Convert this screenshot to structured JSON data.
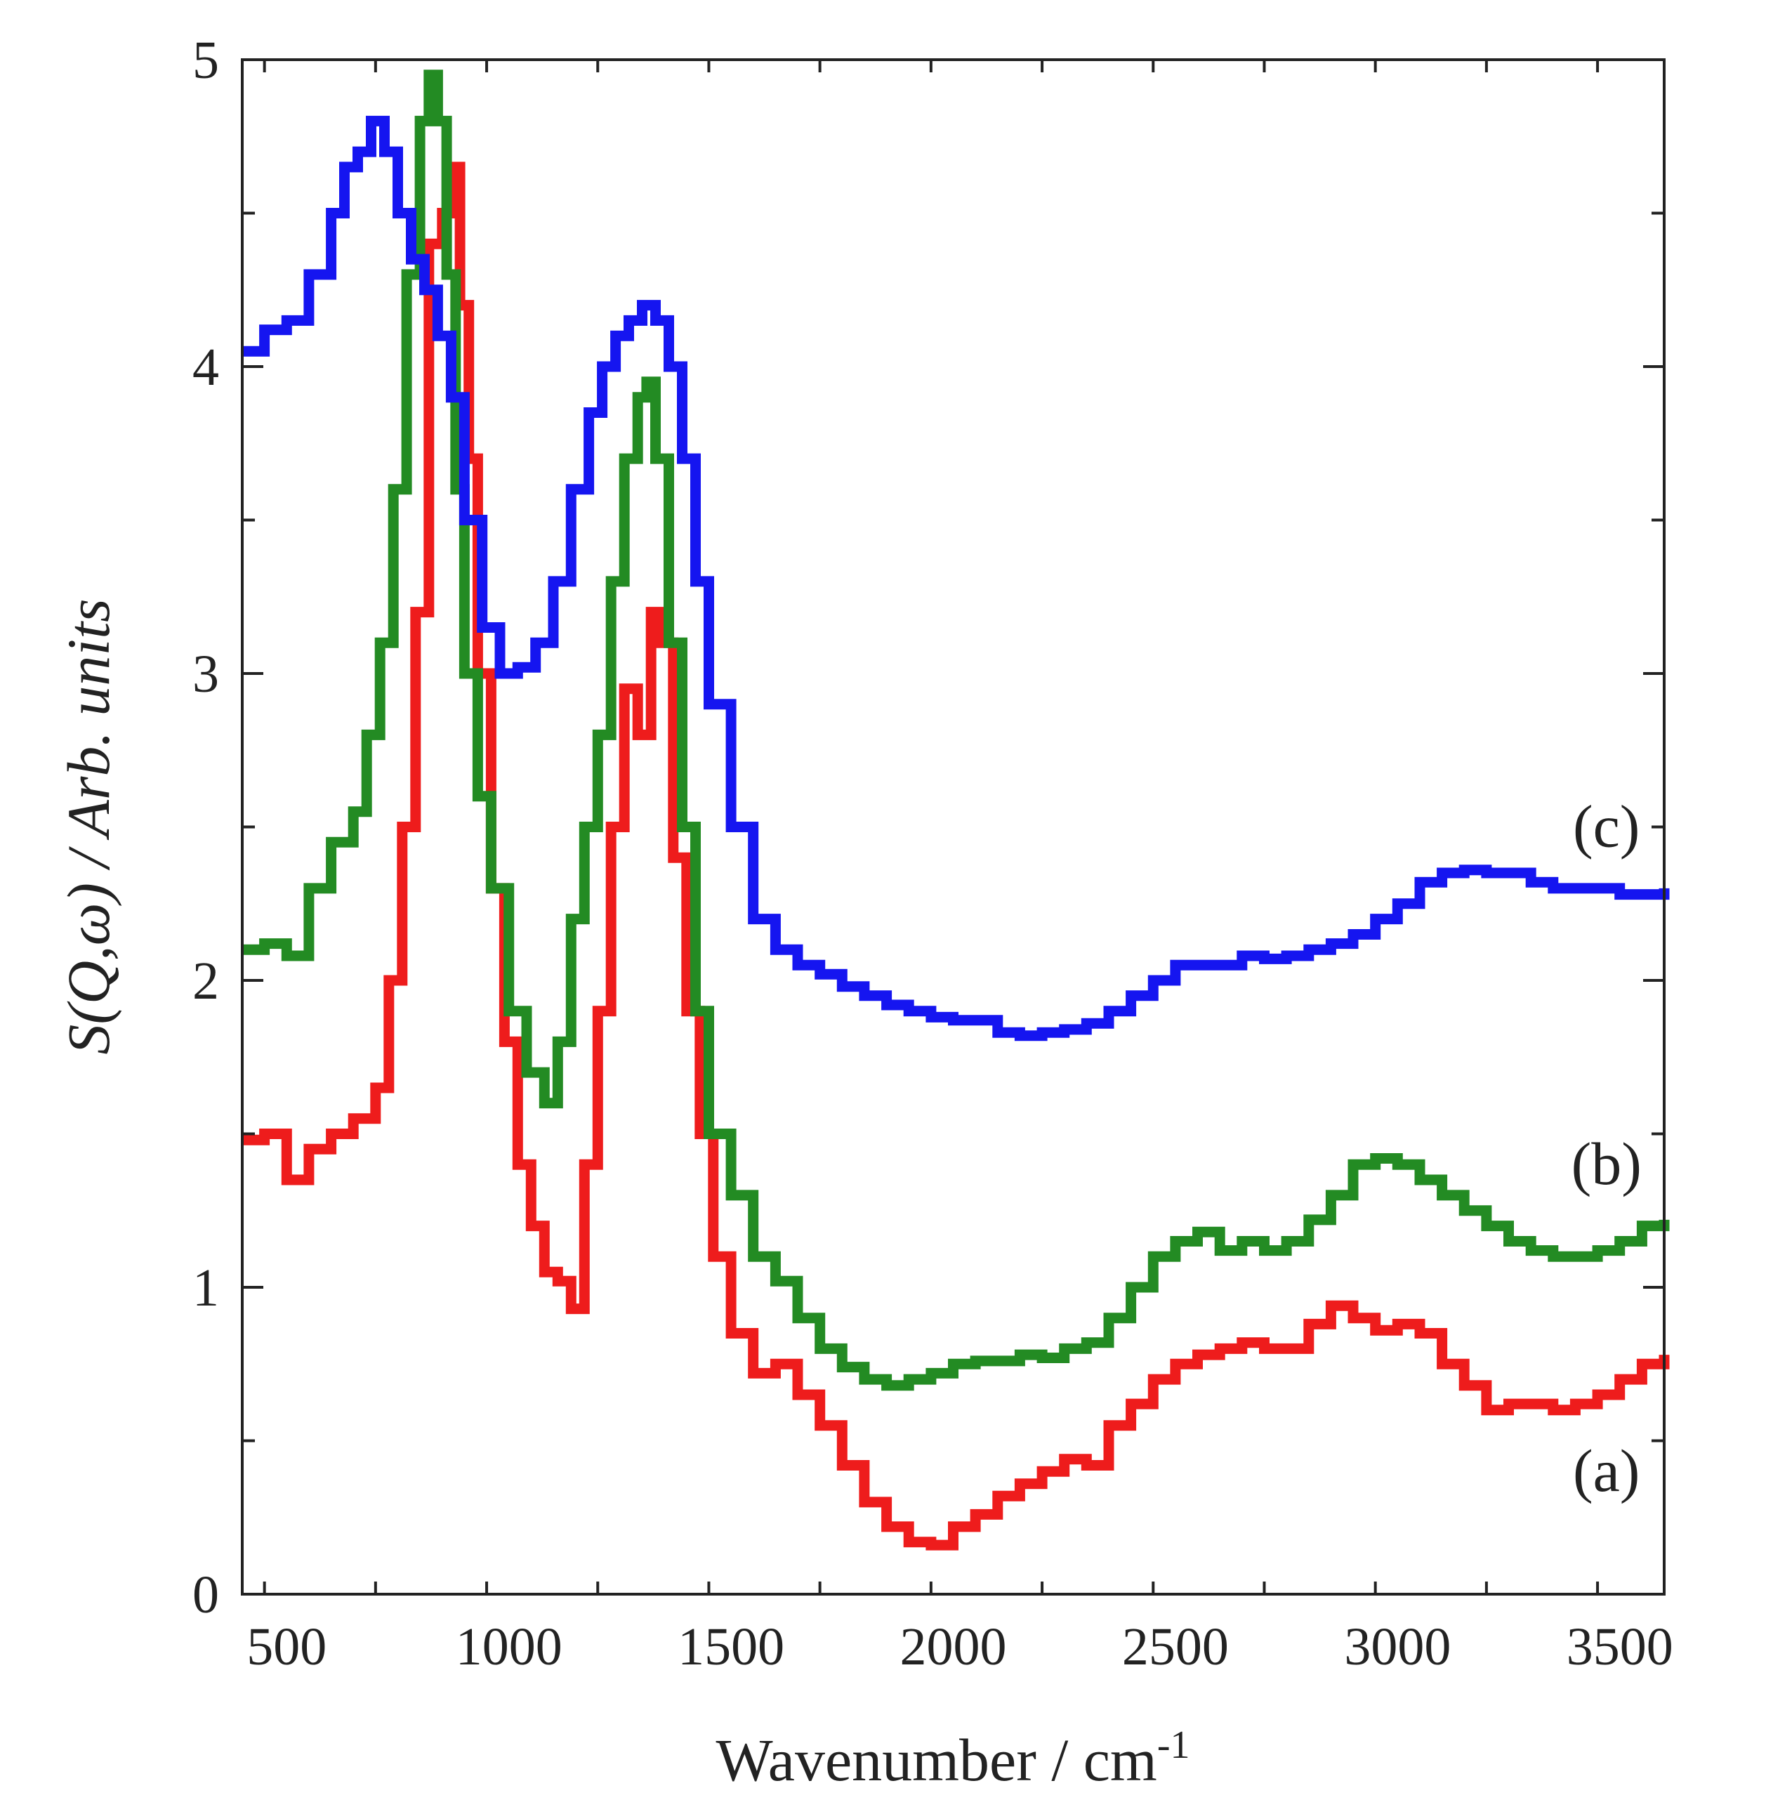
{
  "chart_data": {
    "type": "line",
    "title": "",
    "xlabel": "Wavenumber / cm",
    "xlabel_superscript": "-1",
    "ylabel": "S(Q,ω) / Arb. units",
    "xlim": [
      400,
      3600
    ],
    "ylim": [
      0,
      5
    ],
    "x_major_ticks": [
      500,
      1000,
      1500,
      2000,
      2500,
      3000,
      3500
    ],
    "x_tick_labels": [
      "500",
      "1000",
      "1500",
      "2000",
      "2500",
      "3000",
      "3500"
    ],
    "y_major_ticks": [
      0,
      1,
      2,
      3,
      4,
      5
    ],
    "y_tick_labels": [
      "0",
      "1",
      "2",
      "3",
      "4",
      "5"
    ],
    "grid": false,
    "legend": "inline labels at right",
    "series": [
      {
        "name": "(a)",
        "color": "#ee1c1c",
        "x": [
          400,
          450,
          500,
          550,
          600,
          650,
          700,
          730,
          760,
          790,
          820,
          850,
          870,
          890,
          910,
          930,
          960,
          990,
          1020,
          1050,
          1080,
          1110,
          1140,
          1170,
          1200,
          1230,
          1260,
          1290,
          1320,
          1340,
          1370,
          1400,
          1430,
          1460,
          1500,
          1550,
          1600,
          1650,
          1700,
          1750,
          1800,
          1850,
          1900,
          1950,
          2000,
          2050,
          2100,
          2150,
          2200,
          2250,
          2300,
          2350,
          2400,
          2450,
          2500,
          2550,
          2600,
          2650,
          2700,
          2750,
          2800,
          2850,
          2900,
          2950,
          3000,
          3050,
          3100,
          3150,
          3200,
          3250,
          3300,
          3350,
          3400,
          3450,
          3500,
          3550,
          3600
        ],
        "y": [
          1.48,
          1.5,
          1.35,
          1.45,
          1.5,
          1.55,
          1.65,
          2.0,
          2.5,
          3.2,
          4.4,
          4.5,
          4.65,
          4.2,
          3.7,
          3.0,
          2.3,
          1.8,
          1.4,
          1.2,
          1.05,
          1.02,
          0.93,
          1.4,
          1.9,
          2.5,
          2.95,
          2.8,
          3.2,
          3.1,
          2.4,
          1.9,
          1.5,
          1.1,
          0.85,
          0.72,
          0.75,
          0.65,
          0.55,
          0.42,
          0.3,
          0.22,
          0.17,
          0.16,
          0.22,
          0.26,
          0.32,
          0.36,
          0.4,
          0.44,
          0.42,
          0.55,
          0.62,
          0.7,
          0.75,
          0.78,
          0.8,
          0.82,
          0.8,
          0.8,
          0.88,
          0.94,
          0.9,
          0.86,
          0.88,
          0.85,
          0.75,
          0.68,
          0.6,
          0.62,
          0.62,
          0.6,
          0.62,
          0.65,
          0.7,
          0.75,
          0.78
        ]
      },
      {
        "name": "(b)",
        "color": "#238b23",
        "x": [
          400,
          450,
          500,
          550,
          600,
          650,
          680,
          710,
          740,
          770,
          800,
          820,
          840,
          860,
          880,
          900,
          930,
          960,
          1000,
          1040,
          1080,
          1110,
          1140,
          1170,
          1200,
          1230,
          1260,
          1290,
          1310,
          1330,
          1360,
          1390,
          1420,
          1450,
          1500,
          1550,
          1600,
          1650,
          1700,
          1750,
          1800,
          1850,
          1900,
          1950,
          2000,
          2050,
          2100,
          2150,
          2200,
          2250,
          2300,
          2350,
          2400,
          2450,
          2500,
          2550,
          2600,
          2650,
          2700,
          2750,
          2800,
          2850,
          2900,
          2950,
          3000,
          3050,
          3100,
          3150,
          3200,
          3250,
          3300,
          3350,
          3400,
          3450,
          3500,
          3550,
          3600
        ],
        "y": [
          2.1,
          2.12,
          2.08,
          2.3,
          2.45,
          2.55,
          2.8,
          3.1,
          3.6,
          4.3,
          4.8,
          4.95,
          4.8,
          4.3,
          3.6,
          3.0,
          2.6,
          2.3,
          1.9,
          1.7,
          1.6,
          1.8,
          2.2,
          2.5,
          2.8,
          3.3,
          3.7,
          3.9,
          3.95,
          3.7,
          3.1,
          2.5,
          1.9,
          1.5,
          1.3,
          1.1,
          1.02,
          0.9,
          0.8,
          0.74,
          0.7,
          0.68,
          0.7,
          0.72,
          0.75,
          0.76,
          0.76,
          0.78,
          0.77,
          0.8,
          0.82,
          0.9,
          1.0,
          1.1,
          1.15,
          1.18,
          1.12,
          1.15,
          1.12,
          1.15,
          1.22,
          1.3,
          1.4,
          1.42,
          1.4,
          1.35,
          1.3,
          1.25,
          1.2,
          1.15,
          1.12,
          1.1,
          1.1,
          1.12,
          1.15,
          1.2,
          1.22
        ]
      },
      {
        "name": "(c)",
        "color": "#1515f0",
        "x": [
          400,
          450,
          500,
          550,
          600,
          630,
          660,
          690,
          720,
          750,
          780,
          810,
          840,
          870,
          900,
          940,
          980,
          1020,
          1060,
          1100,
          1140,
          1180,
          1210,
          1240,
          1270,
          1300,
          1330,
          1360,
          1390,
          1420,
          1450,
          1500,
          1550,
          1600,
          1650,
          1700,
          1750,
          1800,
          1850,
          1900,
          1950,
          2000,
          2050,
          2100,
          2150,
          2200,
          2250,
          2300,
          2350,
          2400,
          2450,
          2500,
          2550,
          2600,
          2650,
          2700,
          2750,
          2800,
          2850,
          2900,
          2950,
          3000,
          3050,
          3100,
          3150,
          3200,
          3250,
          3300,
          3350,
          3400,
          3450,
          3500,
          3550,
          3600
        ],
        "y": [
          4.05,
          4.12,
          4.15,
          4.3,
          4.5,
          4.65,
          4.7,
          4.8,
          4.7,
          4.5,
          4.35,
          4.25,
          4.1,
          3.9,
          3.5,
          3.15,
          3.0,
          3.02,
          3.1,
          3.3,
          3.6,
          3.85,
          4.0,
          4.1,
          4.15,
          4.2,
          4.15,
          4.0,
          3.7,
          3.3,
          2.9,
          2.5,
          2.2,
          2.1,
          2.05,
          2.02,
          1.98,
          1.95,
          1.92,
          1.9,
          1.88,
          1.87,
          1.87,
          1.83,
          1.82,
          1.83,
          1.84,
          1.86,
          1.9,
          1.95,
          2.0,
          2.05,
          2.05,
          2.05,
          2.08,
          2.07,
          2.08,
          2.1,
          2.12,
          2.15,
          2.2,
          2.25,
          2.32,
          2.35,
          2.36,
          2.35,
          2.35,
          2.32,
          2.3,
          2.3,
          2.3,
          2.28,
          2.28,
          2.3
        ]
      }
    ],
    "series_labels": [
      {
        "text": "(c)",
        "x": 3470,
        "y": 2.5
      },
      {
        "text": "(b)",
        "x": 3470,
        "y": 1.4
      },
      {
        "text": "(a)",
        "x": 3470,
        "y": 0.4
      }
    ]
  }
}
